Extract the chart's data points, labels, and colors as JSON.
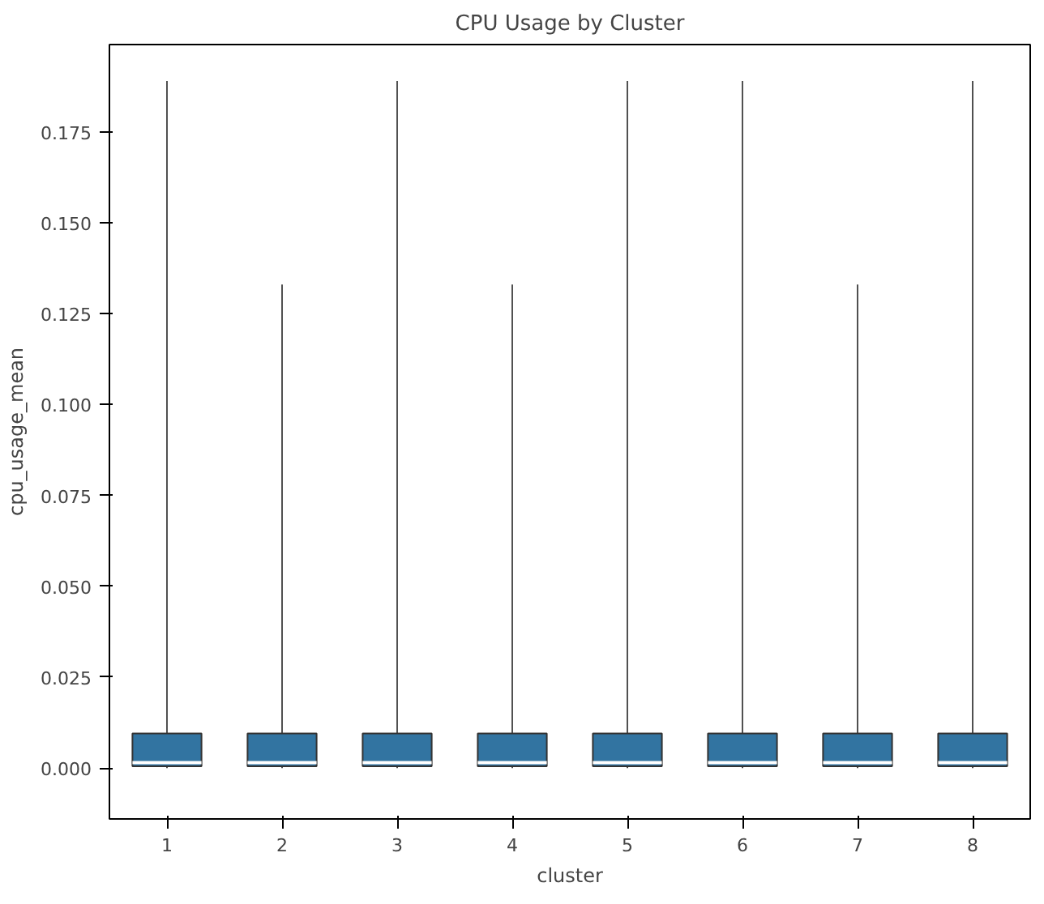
{
  "chart_data": {
    "type": "box",
    "title": "CPU Usage by Cluster",
    "xlabel": "cluster",
    "ylabel": "cpu_usage_mean",
    "categories": [
      "1",
      "2",
      "3",
      "4",
      "5",
      "6",
      "7",
      "8"
    ],
    "color": "#3274a1",
    "boxes": [
      {
        "low": 0,
        "q1": 0.0005,
        "median": 0.0015,
        "q3": 0.0095,
        "high": 0.189
      },
      {
        "low": 0,
        "q1": 0.0005,
        "median": 0.0015,
        "q3": 0.0095,
        "high": 0.133
      },
      {
        "low": 0,
        "q1": 0.0005,
        "median": 0.0015,
        "q3": 0.0095,
        "high": 0.189
      },
      {
        "low": 0,
        "q1": 0.0005,
        "median": 0.0015,
        "q3": 0.0095,
        "high": 0.133
      },
      {
        "low": 0,
        "q1": 0.0005,
        "median": 0.0015,
        "q3": 0.0095,
        "high": 0.189
      },
      {
        "low": 0,
        "q1": 0.0005,
        "median": 0.0015,
        "q3": 0.0095,
        "high": 0.189
      },
      {
        "low": 0,
        "q1": 0.0005,
        "median": 0.0015,
        "q3": 0.0095,
        "high": 0.133
      },
      {
        "low": 0,
        "q1": 0.0005,
        "median": 0.0015,
        "q3": 0.0095,
        "high": 0.189
      }
    ],
    "ylim": [
      -0.014,
      0.199
    ],
    "yticks": [
      {
        "value": 0,
        "label": "0.000"
      },
      {
        "value": 0.025,
        "label": "0.025"
      },
      {
        "value": 0.05,
        "label": "0.050"
      },
      {
        "value": 0.075,
        "label": "0.075"
      },
      {
        "value": 0.1,
        "label": "0.100"
      },
      {
        "value": 0.125,
        "label": "0.125"
      },
      {
        "value": 0.15,
        "label": "0.150"
      },
      {
        "value": 0.175,
        "label": "0.175"
      }
    ],
    "grid": false
  }
}
